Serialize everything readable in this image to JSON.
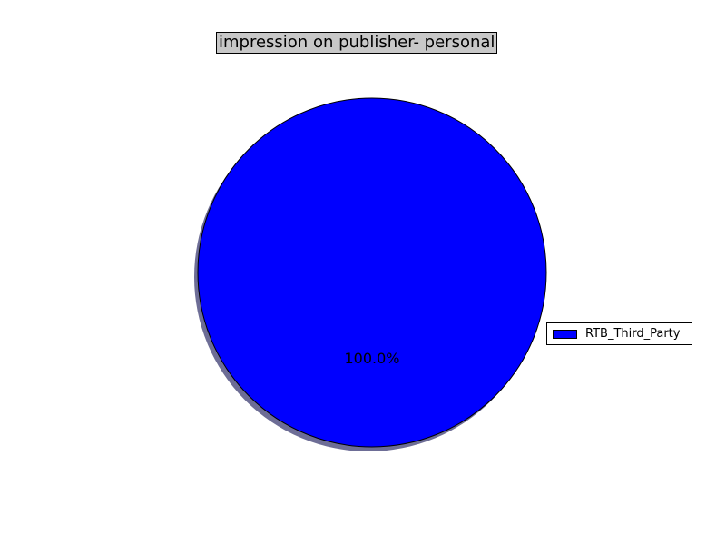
{
  "chart_data": {
    "type": "pie",
    "title": "impression on publisher- personal",
    "slices": [
      {
        "label": "RTB_Third_Party",
        "value": 100.0,
        "percent_label": "100.0%",
        "color": "#0000ff"
      }
    ],
    "shadow": true,
    "legend": "right"
  },
  "colors": {
    "title_bg": "#c8c8c8",
    "shadow": "#6d6d96"
  }
}
